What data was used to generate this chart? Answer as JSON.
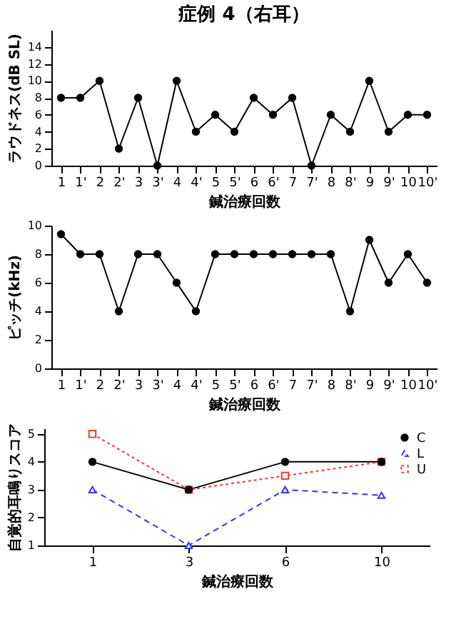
{
  "chart_data": [
    {
      "type": "line",
      "title": "症例 4（右耳）",
      "xlabel": "鍼治療回数",
      "ylabel": "ラウドネス(dB SL)",
      "categories": [
        "1",
        "1'",
        "2",
        "2'",
        "3",
        "3'",
        "4",
        "4'",
        "5",
        "5'",
        "6",
        "6'",
        "7",
        "7'",
        "8",
        "8'",
        "9",
        "9'",
        "10",
        "10'"
      ],
      "series": [
        {
          "color": "#000000",
          "values": [
            8,
            8,
            10,
            2,
            8,
            0,
            10,
            4,
            6,
            4,
            8,
            6,
            8,
            0,
            6,
            4,
            10,
            4,
            6,
            6
          ],
          "marker": "circle",
          "line_style": "solid"
        }
      ],
      "ylim": [
        0,
        16
      ],
      "yticks": [
        0,
        2,
        4,
        6,
        8,
        10,
        12,
        14
      ]
    },
    {
      "type": "line",
      "xlabel": "鍼治療回数",
      "ylabel": "ピッチ(kHz)",
      "categories": [
        "1",
        "1'",
        "2",
        "2'",
        "3",
        "3'",
        "4",
        "4'",
        "5",
        "5'",
        "6",
        "6'",
        "7",
        "7'",
        "8",
        "8'",
        "9",
        "9'",
        "10",
        "10'"
      ],
      "series": [
        {
          "color": "#000000",
          "values": [
            9.4,
            8,
            8,
            4,
            8,
            8,
            6,
            4,
            8,
            8,
            8,
            8,
            8,
            8,
            8,
            4,
            9,
            6,
            8,
            6
          ],
          "marker": "circle",
          "line_style": "solid"
        }
      ],
      "ylim": [
        0,
        10
      ],
      "yticks": [
        0,
        2,
        4,
        6,
        8,
        10
      ]
    },
    {
      "type": "line",
      "xlabel": "鍼治療回数",
      "ylabel": "自覚的耳鳴りスコア",
      "categories": [
        "1",
        "3",
        "6",
        "10"
      ],
      "series": [
        {
          "name": "C",
          "color": "#000000",
          "values": [
            4,
            3,
            4,
            4
          ],
          "marker": "circle",
          "line_style": "solid"
        },
        {
          "name": "L",
          "color": "#3333ff",
          "values": [
            3,
            1,
            3,
            2.8
          ],
          "marker": "triangle",
          "line_style": "dashed"
        },
        {
          "name": "U",
          "color": "#ff3333",
          "values": [
            5,
            3,
            3.5,
            4
          ],
          "marker": "square",
          "line_style": "dotted"
        }
      ],
      "ylim": [
        1,
        5.2
      ],
      "yticks": [
        1,
        2,
        3,
        4,
        5
      ],
      "legend": "top right"
    }
  ]
}
